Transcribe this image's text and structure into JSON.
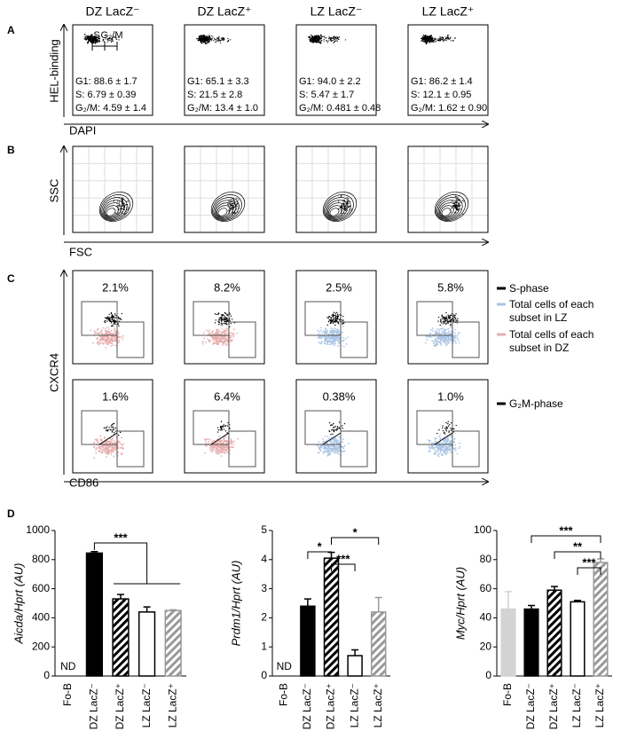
{
  "panel_labels": [
    "A",
    "B",
    "C",
    "D"
  ],
  "column_headers": [
    "DZ LacZ⁻",
    "DZ LacZ⁺",
    "LZ LacZ⁻",
    "LZ LacZ⁺"
  ],
  "panel_a": {
    "y_label": "HEL-binding",
    "x_label": "DAPI",
    "gates": [
      "S",
      "G₂/M"
    ],
    "stats": [
      [
        "G1: 88.6 ± 1.7",
        "S: 6.79 ± 0.39",
        "G₂/M: 4.59 ± 1.4"
      ],
      [
        "G1: 65.1 ± 3.3",
        "S: 21.5 ± 2.8",
        "G₂/M: 13.4 ± 1.0"
      ],
      [
        "G1: 94.0 ± 2.2",
        "S: 5.47 ± 1.7",
        "G₂/M: 0.481 ± 0.48"
      ],
      [
        "G1: 86.2 ± 1.4",
        "S: 12.1 ± 0.95",
        "G₂/M: 1.62 ± 0.90"
      ]
    ]
  },
  "panel_b": {
    "y_label": "SSC",
    "x_label": "FSC"
  },
  "panel_c": {
    "y_label": "CXCR4",
    "x_label": "CD86",
    "row1": [
      "2.1%",
      "8.2%",
      "2.5%",
      "5.8%"
    ],
    "row2": [
      "1.6%",
      "6.4%",
      "0.38%",
      "1.0%"
    ],
    "legend": [
      "S-phase",
      "Total cells of each subset in LZ",
      "Total cells of each subset in DZ",
      "G₂M-phase"
    ],
    "legend_colors": [
      "#000000",
      "#a9c4e4",
      "#e8aeae",
      "#000000"
    ]
  },
  "chart_data": [
    {
      "type": "bar",
      "y_label": "Aicda/Hprt (AU)",
      "categories": [
        "Fo-B",
        "DZ LacZ⁻",
        "DZ LacZ⁺",
        "LZ LacZ⁻",
        "LZ LacZ⁺"
      ],
      "values": [
        null,
        845,
        530,
        440,
        450
      ],
      "errors": [
        null,
        10,
        30,
        35,
        5
      ],
      "colors": [
        "#d3d3d3",
        "#000000",
        "#000000",
        "#ffffff",
        "#999999"
      ],
      "hatched": [
        false,
        false,
        true,
        false,
        true
      ],
      "ylim": [
        0,
        1000
      ],
      "yticks": [
        0,
        200,
        400,
        600,
        800,
        1000
      ],
      "nd_label": "ND",
      "significance": [
        "***"
      ]
    },
    {
      "type": "bar",
      "y_label": "Prdm1/Hprt (AU)",
      "categories": [
        "Fo-B",
        "DZ LacZ⁻",
        "DZ LacZ⁺",
        "LZ LacZ⁻",
        "LZ LacZ⁺"
      ],
      "values": [
        null,
        2.4,
        4.05,
        0.7,
        2.2
      ],
      "errors": [
        null,
        0.25,
        0.2,
        0.2,
        0.5
      ],
      "colors": [
        "#d3d3d3",
        "#000000",
        "#000000",
        "#ffffff",
        "#999999"
      ],
      "hatched": [
        false,
        false,
        true,
        false,
        true
      ],
      "ylim": [
        0,
        5
      ],
      "yticks": [
        0,
        1,
        2,
        3,
        4,
        5
      ],
      "nd_label": "ND",
      "significance": [
        "*",
        "***",
        "*"
      ]
    },
    {
      "type": "bar",
      "y_label": "Myc/Hprt (AU)",
      "categories": [
        "Fo-B",
        "DZ LacZ⁻",
        "DZ LacZ⁺",
        "LZ LacZ⁻",
        "LZ LacZ⁺"
      ],
      "values": [
        46,
        46,
        59,
        51,
        78
      ],
      "errors": [
        12,
        2.5,
        2.5,
        1,
        2.5
      ],
      "colors": [
        "#d3d3d3",
        "#000000",
        "#000000",
        "#ffffff",
        "#999999"
      ],
      "hatched": [
        false,
        false,
        true,
        false,
        true
      ],
      "ylim": [
        0,
        100
      ],
      "yticks": [
        0,
        20,
        40,
        60,
        80,
        100
      ],
      "significance": [
        "***",
        "**",
        "***"
      ]
    }
  ]
}
